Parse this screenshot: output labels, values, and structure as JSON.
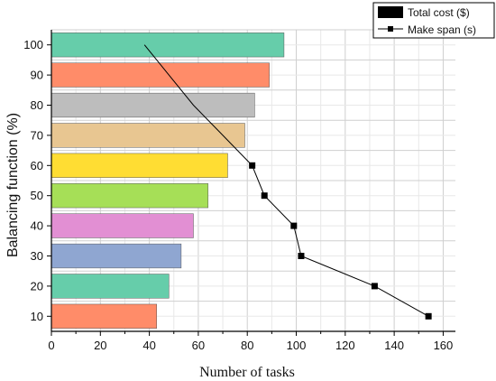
{
  "chart_data": {
    "type": "bar",
    "orientation": "horizontal",
    "categories": [
      "10",
      "20",
      "30",
      "40",
      "50",
      "60",
      "70",
      "80",
      "90",
      "100"
    ],
    "xlabel": "Number of tasks",
    "ylabel": "Balancing function (%)",
    "xlim": [
      0,
      165
    ],
    "xticks": [
      "0",
      "20",
      "40",
      "60",
      "80",
      "100",
      "120",
      "140",
      "160"
    ],
    "grid": true,
    "legend_position": "top-right",
    "bar_colors": [
      "#FF8C69",
      "#66CDAA",
      "#8FA6D1",
      "#E28FD3",
      "#A6DF57",
      "#FFDD33",
      "#E8C691",
      "#BDBDBD",
      "#FF8C69",
      "#66CDAA"
    ],
    "line_color": "#000000",
    "series": [
      {
        "name": "Total cost ($)",
        "type": "bar",
        "values": [
          43,
          48,
          53,
          58,
          64,
          72,
          79,
          83,
          89,
          95
        ]
      },
      {
        "name": "Make span (s)",
        "type": "line",
        "values": [
          154,
          132,
          102,
          99,
          87,
          82,
          70,
          58,
          48,
          38
        ]
      }
    ]
  }
}
